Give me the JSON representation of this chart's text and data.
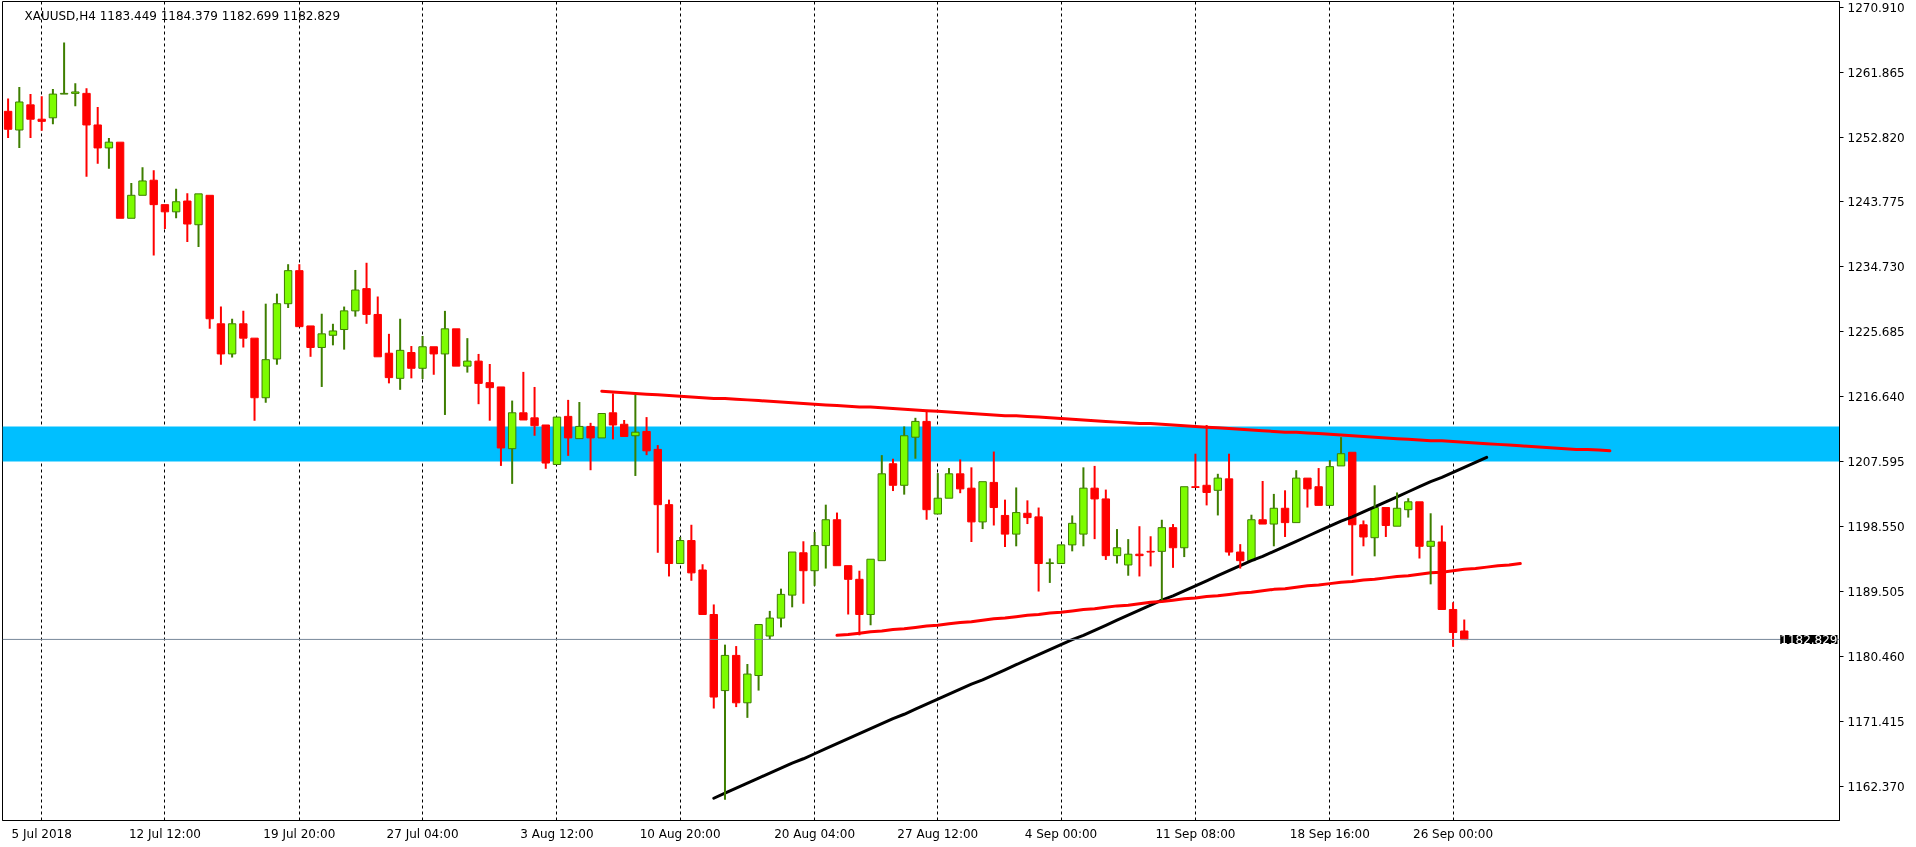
{
  "chart_data": {
    "type": "candlestick",
    "title": "XAUUSD,H4 1183.449 1184.379 1182.699 1182.829",
    "categories": [
      null,
      null,
      null,
      "5 Jul 2018",
      null,
      null,
      null,
      null,
      null,
      null,
      null,
      null,
      null,
      null,
      "12 Jul 12:00",
      null,
      null,
      null,
      null,
      null,
      null,
      null,
      null,
      null,
      null,
      null,
      "19 Jul 20:00",
      null,
      null,
      null,
      null,
      null,
      null,
      null,
      null,
      null,
      null,
      "27 Jul 04:00",
      null,
      null,
      null,
      null,
      null,
      null,
      null,
      null,
      null,
      null,
      null,
      "3 Aug 12:00",
      null,
      null,
      null,
      null,
      null,
      null,
      null,
      null,
      null,
      null,
      "10 Aug 20:00",
      null,
      null,
      null,
      null,
      null,
      null,
      null,
      null,
      null,
      null,
      null,
      "20 Aug 04:00",
      null,
      null,
      null,
      null,
      null,
      null,
      null,
      null,
      null,
      null,
      "27 Aug 12:00",
      null,
      null,
      null,
      null,
      null,
      null,
      null,
      null,
      null,
      null,
      "4 Sep 00:00",
      null,
      null,
      null,
      null,
      null,
      null,
      null,
      null,
      null,
      null,
      null,
      "11 Sep 08:00",
      null,
      null,
      null,
      null,
      null,
      null,
      null,
      null,
      null,
      null,
      null,
      "18 Sep 16:00",
      null,
      null,
      null,
      null,
      null,
      null,
      null,
      null,
      null,
      null,
      "26 Sep 00:00",
      null,
      null,
      null,
      null,
      null,
      null,
      null,
      null,
      null,
      null,
      null,
      null,
      null,
      null,
      null,
      null,
      null,
      null,
      null,
      null,
      null,
      null,
      null,
      null,
      null,
      null,
      null,
      null,
      null,
      null,
      null,
      null,
      null,
      null
    ],
    "ohlc": [
      [
        1256.4,
        1258.2,
        1252.7,
        1253.9
      ],
      [
        1253.8,
        1259.8,
        1251.3,
        1257.7
      ],
      [
        1257.3,
        1258.8,
        1252.7,
        1255.3
      ],
      [
        1255.3,
        1258.5,
        1253.7,
        1255.0
      ],
      [
        1255.5,
        1259.5,
        1254.6,
        1258.8
      ],
      [
        1258.8,
        1266.0,
        1258.5,
        1258.9
      ],
      [
        1258.9,
        1260.3,
        1257.1,
        1259.1
      ],
      [
        1258.9,
        1259.6,
        1247.3,
        1254.5
      ],
      [
        1254.5,
        1257.0,
        1249.1,
        1251.3
      ],
      [
        1251.3,
        1252.7,
        1248.4,
        1252.1
      ],
      [
        1252.1,
        1252.3,
        1241.3,
        1241.5
      ],
      [
        1241.5,
        1246.4,
        1241.4,
        1244.7
      ],
      [
        1244.7,
        1248.6,
        1244.6,
        1246.7
      ],
      [
        1246.8,
        1248.2,
        1236.3,
        1243.4
      ],
      [
        1243.4,
        1243.8,
        1240.0,
        1242.4
      ],
      [
        1242.4,
        1245.6,
        1241.5,
        1243.8
      ],
      [
        1243.9,
        1245.0,
        1238.2,
        1240.7
      ],
      [
        1240.6,
        1245.0,
        1237.5,
        1244.9
      ],
      [
        1244.7,
        1245.0,
        1226.1,
        1227.5
      ],
      [
        1226.8,
        1229.2,
        1221.1,
        1222.6
      ],
      [
        1222.6,
        1227.5,
        1222.1,
        1226.8
      ],
      [
        1226.8,
        1228.6,
        1223.5,
        1224.8
      ],
      [
        1224.8,
        1225.0,
        1213.3,
        1216.5
      ],
      [
        1216.5,
        1229.6,
        1215.8,
        1221.8
      ],
      [
        1221.9,
        1231.0,
        1221.1,
        1229.6
      ],
      [
        1229.6,
        1235.1,
        1229.0,
        1234.2
      ],
      [
        1234.2,
        1235.1,
        1226.1,
        1226.4
      ],
      [
        1226.5,
        1226.9,
        1222.2,
        1223.5
      ],
      [
        1223.5,
        1228.2,
        1218.0,
        1225.4
      ],
      [
        1225.2,
        1226.8,
        1223.8,
        1225.8
      ],
      [
        1226.0,
        1229.2,
        1223.2,
        1228.6
      ],
      [
        1228.6,
        1234.3,
        1227.8,
        1231.5
      ],
      [
        1231.7,
        1235.3,
        1226.8,
        1228.1
      ],
      [
        1228.1,
        1230.6,
        1222.1,
        1222.2
      ],
      [
        1222.7,
        1225.4,
        1218.5,
        1219.3
      ],
      [
        1219.2,
        1227.5,
        1217.6,
        1223.1
      ],
      [
        1222.8,
        1223.7,
        1219.2,
        1220.6
      ],
      [
        1220.6,
        1225.1,
        1219.1,
        1223.6
      ],
      [
        1223.6,
        1223.7,
        1219.7,
        1222.6
      ],
      [
        1222.6,
        1228.6,
        1214.1,
        1226.1
      ],
      [
        1226.1,
        1226.2,
        1220.7,
        1220.9
      ],
      [
        1220.9,
        1224.8,
        1220.0,
        1221.6
      ],
      [
        1221.6,
        1222.6,
        1215.6,
        1218.5
      ],
      [
        1218.6,
        1221.2,
        1213.3,
        1217.9
      ],
      [
        1218.0,
        1218.1,
        1207.0,
        1209.5
      ],
      [
        1209.4,
        1216.1,
        1204.5,
        1214.4
      ],
      [
        1214.4,
        1220.1,
        1213.2,
        1213.4
      ],
      [
        1213.7,
        1218.0,
        1211.2,
        1212.6
      ],
      [
        1212.7,
        1212.8,
        1206.6,
        1207.4
      ],
      [
        1207.2,
        1213.9,
        1207.0,
        1213.8
      ],
      [
        1213.9,
        1216.2,
        1208.4,
        1210.9
      ],
      [
        1210.8,
        1215.9,
        1210.5,
        1212.5
      ],
      [
        1212.5,
        1213.0,
        1206.4,
        1210.9
      ],
      [
        1210.9,
        1214.7,
        1210.7,
        1214.3
      ],
      [
        1214.4,
        1217.1,
        1210.7,
        1212.7
      ],
      [
        1212.8,
        1213.4,
        1211.0,
        1211.1
      ],
      [
        1211.2,
        1216.9,
        1205.6,
        1211.7
      ],
      [
        1211.8,
        1213.8,
        1208.5,
        1209.1
      ],
      [
        1209.3,
        1209.9,
        1194.9,
        1201.6
      ],
      [
        1201.6,
        1202.3,
        1191.6,
        1193.4
      ],
      [
        1193.4,
        1197.1,
        1193.1,
        1196.6
      ],
      [
        1196.6,
        1198.8,
        1191.0,
        1192.1
      ],
      [
        1192.5,
        1193.3,
        1186.2,
        1186.3
      ],
      [
        1186.3,
        1187.7,
        1173.2,
        1174.8
      ],
      [
        1175.7,
        1182.1,
        1160.5,
        1180.6
      ],
      [
        1180.6,
        1181.9,
        1173.4,
        1174.0
      ],
      [
        1174.0,
        1179.4,
        1171.9,
        1178.0
      ],
      [
        1177.8,
        1185.2,
        1175.7,
        1184.9
      ],
      [
        1183.3,
        1186.8,
        1182.8,
        1185.8
      ],
      [
        1185.8,
        1189.9,
        1184.5,
        1189.1
      ],
      [
        1189.0,
        1195.4,
        1187.3,
        1195.0
      ],
      [
        1194.9,
        1196.5,
        1187.8,
        1192.4
      ],
      [
        1192.4,
        1197.8,
        1190.3,
        1195.9
      ],
      [
        1195.9,
        1201.6,
        1192.7,
        1199.5
      ],
      [
        1199.5,
        1200.5,
        1192.9,
        1193.1
      ],
      [
        1193.1,
        1193.5,
        1186.3,
        1191.2
      ],
      [
        1191.2,
        1192.4,
        1183.4,
        1186.3
      ],
      [
        1186.3,
        1194.1,
        1184.8,
        1194.0
      ],
      [
        1193.8,
        1208.5,
        1193.7,
        1205.9
      ],
      [
        1207.3,
        1208.0,
        1203.5,
        1204.3
      ],
      [
        1204.3,
        1212.5,
        1203.0,
        1211.2
      ],
      [
        1211.0,
        1213.7,
        1208.0,
        1213.2
      ],
      [
        1213.2,
        1214.8,
        1199.5,
        1200.9
      ],
      [
        1200.3,
        1206.0,
        1200.2,
        1202.5
      ],
      [
        1202.5,
        1206.7,
        1202.1,
        1205.9
      ],
      [
        1205.9,
        1207.9,
        1203.2,
        1203.8
      ],
      [
        1203.9,
        1206.8,
        1196.4,
        1199.2
      ],
      [
        1199.2,
        1204.9,
        1198.2,
        1204.8
      ],
      [
        1204.7,
        1209.0,
        1198.7,
        1201.2
      ],
      [
        1200.1,
        1202.3,
        1195.7,
        1197.5
      ],
      [
        1197.5,
        1204.0,
        1195.8,
        1200.5
      ],
      [
        1200.4,
        1202.2,
        1198.9,
        1199.8
      ],
      [
        1199.9,
        1201.2,
        1189.5,
        1193.4
      ],
      [
        1193.4,
        1194.1,
        1190.7,
        1193.5
      ],
      [
        1193.4,
        1196.2,
        1193.1,
        1196.0
      ],
      [
        1196.0,
        1200.1,
        1195.1,
        1199.0
      ],
      [
        1197.5,
        1206.8,
        1195.8,
        1203.9
      ],
      [
        1203.9,
        1207.0,
        1196.8,
        1202.4
      ],
      [
        1202.4,
        1203.7,
        1193.9,
        1194.5
      ],
      [
        1194.5,
        1198.2,
        1193.4,
        1195.6
      ],
      [
        1193.2,
        1196.8,
        1191.7,
        1194.7
      ],
      [
        1194.7,
        1198.6,
        1191.6,
        1194.5
      ],
      [
        1195.1,
        1197.2,
        1193.0,
        1195.0
      ],
      [
        1195.1,
        1199.5,
        1188.3,
        1198.4
      ],
      [
        1198.4,
        1198.9,
        1192.8,
        1195.6
      ],
      [
        1195.6,
        1204.5,
        1194.3,
        1204.1
      ],
      [
        1204.1,
        1208.7,
        1203.8,
        1204.0
      ],
      [
        1204.3,
        1212.7,
        1201.5,
        1203.3
      ],
      [
        1203.6,
        1205.9,
        1200.1,
        1205.3
      ],
      [
        1205.2,
        1208.7,
        1194.5,
        1195.0
      ],
      [
        1195.0,
        1196.1,
        1192.7,
        1193.8
      ],
      [
        1193.8,
        1200.2,
        1193.6,
        1199.5
      ],
      [
        1199.5,
        1204.9,
        1198.7,
        1198.9
      ],
      [
        1198.9,
        1203.1,
        1195.8,
        1201.1
      ],
      [
        1201.1,
        1203.6,
        1197.1,
        1199.1
      ],
      [
        1199.1,
        1206.4,
        1199.0,
        1205.3
      ],
      [
        1205.3,
        1205.4,
        1201.2,
        1203.8
      ],
      [
        1204.1,
        1206.7,
        1201.3,
        1201.5
      ],
      [
        1201.5,
        1207.8,
        1201.3,
        1206.9
      ],
      [
        1207.0,
        1211.0,
        1206.9,
        1208.7
      ],
      [
        1208.9,
        1209.0,
        1191.7,
        1198.8
      ],
      [
        1198.8,
        1199.4,
        1195.8,
        1197.1
      ],
      [
        1197.0,
        1204.3,
        1194.4,
        1201.2
      ],
      [
        1201.2,
        1201.3,
        1197.1,
        1198.7
      ],
      [
        1198.6,
        1203.3,
        1198.4,
        1201.1
      ],
      [
        1200.9,
        1202.5,
        1199.8,
        1202.0
      ],
      [
        1202.0,
        1202.4,
        1194.1,
        1195.8
      ],
      [
        1195.8,
        1200.4,
        1190.5,
        1196.5
      ],
      [
        1196.4,
        1198.7,
        1186.6,
        1187.0
      ],
      [
        1187.0,
        1188.0,
        1181.8,
        1183.8
      ],
      [
        1184.0,
        1185.6,
        1182.7,
        1182.8
      ],
      null,
      null,
      null,
      null,
      null,
      null,
      null,
      null,
      null,
      null,
      null,
      null,
      null,
      null,
      null,
      null,
      null,
      null,
      null,
      null,
      null,
      null,
      null,
      null,
      null,
      null,
      null,
      null,
      null,
      null,
      null,
      null,
      null
    ],
    "colors": [
      "#ff0000",
      "#7cfc00",
      "#ff0000",
      "#ff0000",
      "#7cfc00",
      "#7cfc00",
      "#7cfc00",
      "#ff0000",
      "#ff0000",
      "#7cfc00",
      "#ff0000",
      "#7cfc00",
      "#7cfc00",
      "#ff0000",
      "#ff0000",
      "#7cfc00",
      "#ff0000",
      "#7cfc00",
      "#ff0000",
      "#ff0000",
      "#7cfc00",
      "#ff0000",
      "#ff0000",
      "#7cfc00",
      "#7cfc00",
      "#7cfc00",
      "#ff0000",
      "#ff0000",
      "#7cfc00",
      "#7cfc00",
      "#7cfc00",
      "#7cfc00",
      "#ff0000",
      "#ff0000",
      "#ff0000",
      "#7cfc00",
      "#ff0000",
      "#7cfc00",
      "#ff0000",
      "#7cfc00",
      "#ff0000",
      "#7cfc00",
      "#ff0000",
      "#ff0000",
      "#ff0000",
      "#7cfc00",
      "#ff0000",
      "#ff0000",
      "#ff0000",
      "#7cfc00",
      "#ff0000",
      "#7cfc00",
      "#ff0000",
      "#7cfc00",
      "#ff0000",
      "#ff0000",
      "#7cfc00",
      "#ff0000",
      "#ff0000",
      "#ff0000",
      "#7cfc00",
      "#ff0000",
      "#ff0000",
      "#ff0000",
      "#7cfc00",
      "#ff0000",
      "#7cfc00",
      "#7cfc00",
      "#7cfc00",
      "#7cfc00",
      "#7cfc00",
      "#ff0000",
      "#7cfc00",
      "#7cfc00",
      "#ff0000",
      "#ff0000",
      "#ff0000",
      "#7cfc00",
      "#7cfc00",
      "#ff0000",
      "#7cfc00",
      "#7cfc00",
      "#ff0000",
      "#7cfc00",
      "#7cfc00",
      "#ff0000",
      "#ff0000",
      "#7cfc00",
      "#ff0000",
      "#ff0000",
      "#7cfc00",
      "#ff0000",
      "#ff0000",
      "#7cfc00",
      "#7cfc00",
      "#7cfc00",
      "#7cfc00",
      "#ff0000",
      "#ff0000",
      "#7cfc00",
      "#7cfc00",
      "#ff0000",
      "#ff0000",
      "#7cfc00",
      "#ff0000",
      "#7cfc00",
      "#ff0000",
      "#ff0000",
      "#7cfc00",
      "#ff0000",
      "#ff0000",
      "#7cfc00",
      "#ff0000",
      "#7cfc00",
      "#ff0000",
      "#7cfc00",
      "#ff0000",
      "#ff0000",
      "#7cfc00",
      "#7cfc00",
      "#ff0000",
      "#ff0000",
      "#7cfc00",
      "#ff0000",
      "#7cfc00",
      "#7cfc00",
      "#ff0000",
      "#7cfc00",
      "#ff0000",
      "#ff0000",
      "#ff0000",
      null,
      null,
      null,
      null,
      null,
      null,
      null,
      null,
      null,
      null,
      null,
      null,
      null,
      null,
      null,
      null,
      null,
      null,
      null,
      null,
      null,
      null,
      null,
      null,
      null,
      null,
      null,
      null,
      null,
      null,
      null,
      null,
      null
    ],
    "series": [
      {
        "type": "line",
        "color": "#ff0000",
        "values": [
          null,
          null,
          null,
          null,
          null,
          null,
          null,
          null,
          null,
          null,
          null,
          null,
          null,
          null,
          null,
          null,
          null,
          null,
          null,
          null,
          null,
          null,
          null,
          null,
          null,
          null,
          null,
          null,
          null,
          null,
          null,
          null,
          null,
          null,
          null,
          null,
          null,
          null,
          null,
          null,
          null,
          null,
          null,
          null,
          null,
          null,
          null,
          null,
          null,
          null,
          null,
          null,
          null,
          1217.4,
          1217.3,
          1217.2,
          1217.1,
          1217.0,
          1216.9,
          1216.8,
          1216.7,
          1216.6,
          1216.5,
          1216.4,
          1216.4,
          1216.3,
          1216.2,
          1216.1,
          1216.0,
          1215.9,
          1215.8,
          1215.7,
          1215.6,
          1215.5,
          1215.4,
          1215.3,
          1215.2,
          1215.2,
          1215.1,
          1215.0,
          1214.9,
          1214.8,
          1214.7,
          1214.6,
          1214.5,
          1214.4,
          1214.3,
          1214.2,
          1214.1,
          1214.0,
          1214.0,
          1213.9,
          1213.8,
          1213.7,
          1213.6,
          1213.5,
          1213.4,
          1213.3,
          1213.2,
          1213.1,
          1213.0,
          1212.9,
          1212.9,
          1212.8,
          1212.7,
          1212.6,
          1212.5,
          1212.4,
          1212.3,
          1212.2,
          1212.1,
          1212.0,
          1211.9,
          1211.8,
          1211.7,
          1211.7,
          1211.6,
          1211.5,
          1211.4,
          1211.3,
          1211.2,
          1211.1,
          1211.0,
          1210.9,
          1210.8,
          1210.7,
          1210.6,
          1210.5,
          1210.5,
          1210.4,
          1210.3,
          1210.2,
          1210.1,
          1210.0,
          1209.9,
          1209.8,
          1209.7,
          1209.6,
          1209.5,
          1209.4,
          1209.3,
          1209.3,
          1209.2,
          1209.1,
          null,
          null,
          null,
          null,
          null,
          null,
          null,
          null,
          null,
          null,
          null,
          null,
          null,
          null,
          null,
          null,
          null,
          null,
          null,
          null
        ]
      },
      {
        "type": "line",
        "color": "#000000",
        "values": [
          null,
          null,
          null,
          null,
          null,
          null,
          null,
          null,
          null,
          null,
          null,
          null,
          null,
          null,
          null,
          null,
          null,
          null,
          null,
          null,
          null,
          null,
          null,
          null,
          null,
          null,
          null,
          null,
          null,
          null,
          null,
          null,
          null,
          null,
          null,
          null,
          null,
          null,
          null,
          null,
          null,
          null,
          null,
          null,
          null,
          null,
          null,
          null,
          null,
          null,
          null,
          null,
          null,
          null,
          null,
          null,
          null,
          null,
          null,
          null,
          null,
          null,
          null,
          1160.7,
          1161.4,
          1162.1,
          1162.8,
          1163.5,
          1164.2,
          1164.9,
          1165.6,
          1166.2,
          1166.9,
          1167.6,
          1168.3,
          1169.0,
          1169.7,
          1170.4,
          1171.1,
          1171.8,
          1172.4,
          1173.1,
          1173.8,
          1174.5,
          1175.2,
          1175.9,
          1176.6,
          1177.2,
          1177.9,
          1178.6,
          1179.3,
          1180.0,
          1180.7,
          1181.4,
          1182.1,
          1182.8,
          1183.4,
          1184.1,
          1184.8,
          1185.5,
          1186.2,
          1186.9,
          1187.6,
          1188.3,
          1188.9,
          1189.6,
          1190.3,
          1191.0,
          1191.7,
          1192.4,
          1193.1,
          1193.8,
          1194.4,
          1195.1,
          1195.8,
          1196.5,
          1197.2,
          1197.9,
          1198.6,
          1199.3,
          1199.9,
          1200.6,
          1201.3,
          1202.0,
          1202.7,
          1203.4,
          1204.1,
          1204.8,
          1205.4,
          1206.1,
          1206.8,
          1207.5,
          1208.2,
          null,
          null,
          null,
          null,
          null,
          null,
          null,
          null,
          null,
          null,
          null,
          null,
          null,
          null,
          null,
          null,
          null,
          null,
          null,
          null,
          null,
          null,
          null,
          null,
          null,
          null,
          null,
          null,
          null,
          null,
          null
        ]
      },
      {
        "type": "line",
        "color": "#ff0000",
        "values": [
          null,
          null,
          null,
          null,
          null,
          null,
          null,
          null,
          null,
          null,
          null,
          null,
          null,
          null,
          null,
          null,
          null,
          null,
          null,
          null,
          null,
          null,
          null,
          null,
          null,
          null,
          null,
          null,
          null,
          null,
          null,
          null,
          null,
          null,
          null,
          null,
          null,
          null,
          null,
          null,
          null,
          null,
          null,
          null,
          null,
          null,
          null,
          null,
          null,
          null,
          null,
          null,
          null,
          null,
          null,
          null,
          null,
          null,
          null,
          null,
          null,
          null,
          null,
          null,
          null,
          null,
          null,
          null,
          null,
          null,
          null,
          null,
          null,
          null,
          1183.4,
          1183.5,
          1183.7,
          1183.9,
          1184.0,
          1184.2,
          1184.3,
          1184.5,
          1184.7,
          1184.8,
          1185.0,
          1185.2,
          1185.3,
          1185.5,
          1185.7,
          1185.8,
          1186.0,
          1186.2,
          1186.3,
          1186.5,
          1186.6,
          1186.8,
          1187.0,
          1187.1,
          1187.3,
          1187.5,
          1187.6,
          1187.8,
          1188.0,
          1188.1,
          1188.3,
          1188.5,
          1188.6,
          1188.8,
          1188.9,
          1189.1,
          1189.3,
          1189.4,
          1189.6,
          1189.8,
          1189.9,
          1190.1,
          1190.3,
          1190.4,
          1190.6,
          1190.8,
          1190.9,
          1191.1,
          1191.2,
          1191.4,
          1191.6,
          1191.7,
          1191.9,
          1192.1,
          1192.2,
          1192.4,
          1192.6,
          1192.7,
          1192.9,
          1193.1,
          1193.2,
          1193.4,
          null,
          null,
          null,
          null,
          null,
          null,
          null,
          null,
          null,
          null,
          null,
          null,
          null,
          null,
          null,
          null,
          null,
          null,
          null,
          null,
          null,
          null,
          null,
          null,
          null,
          null,
          null,
          null
        ]
      }
    ],
    "bands": [
      {
        "axis": "y",
        "from": 1207.6,
        "to": 1212.5,
        "color": "#00bfff"
      }
    ],
    "ref_lines": [
      {
        "axis": "y",
        "value": 1182.829,
        "label": "1182.829",
        "color": "#778899"
      }
    ],
    "ylim": [
      1157.6,
      1271.7
    ],
    "yticks": [
      {
        "value": 1162.37,
        "label": "1162.370"
      },
      {
        "value": 1171.415,
        "label": "1171.415"
      },
      {
        "value": 1180.46,
        "label": "1180.460"
      },
      {
        "value": 1189.505,
        "label": "1189.505"
      },
      {
        "value": 1198.55,
        "label": "1198.550"
      },
      {
        "value": 1207.595,
        "label": "1207.595"
      },
      {
        "value": 1216.64,
        "label": "1216.640"
      },
      {
        "value": 1225.685,
        "label": "1225.685"
      },
      {
        "value": 1234.73,
        "label": "1234.730"
      },
      {
        "value": 1243.775,
        "label": "1243.775"
      },
      {
        "value": 1252.82,
        "label": "1252.820"
      },
      {
        "value": 1261.865,
        "label": "1261.865"
      },
      {
        "value": 1270.91,
        "label": "1270.910"
      }
    ],
    "grid": "x"
  }
}
